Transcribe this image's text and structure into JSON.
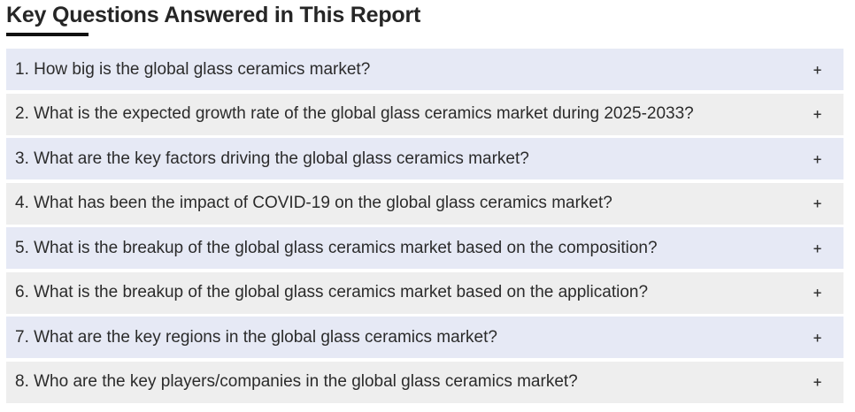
{
  "section": {
    "title": "Key Questions Answered in This Report"
  },
  "faq": {
    "toggle_symbol": "+",
    "items": [
      {
        "question": "1. How big is the global glass ceramics market?"
      },
      {
        "question": "2. What is the expected growth rate of the global glass ceramics market during 2025-2033?"
      },
      {
        "question": "3. What are the key factors driving the global glass ceramics market?"
      },
      {
        "question": "4. What has been the impact of COVID-19 on the global glass ceramics market?"
      },
      {
        "question": "5. What is the breakup of the global glass ceramics market based on the composition?"
      },
      {
        "question": "6. What is the breakup of the global glass ceramics market based on the application?"
      },
      {
        "question": "7. What are the key regions in the global glass ceramics market?"
      },
      {
        "question": "8. Who are the key players/companies in the global glass ceramics market?"
      }
    ]
  },
  "colors": {
    "row_odd": "#e6e9f5",
    "row_even": "#eeeeee",
    "heading_underline": "#111111"
  }
}
